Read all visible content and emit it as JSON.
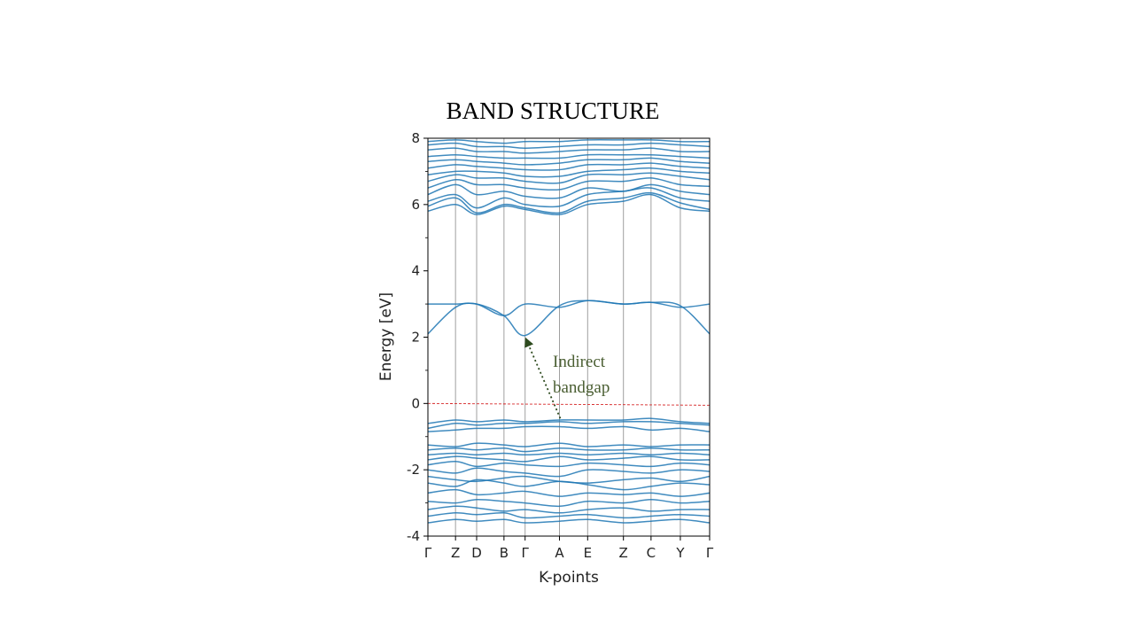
{
  "chart_data": {
    "type": "line",
    "title": "BAND STRUCTURE",
    "xlabel": "K-points",
    "ylabel": "Energy [eV]",
    "ylim": [
      -4,
      8
    ],
    "yticks": [
      -4,
      -2,
      0,
      2,
      4,
      6,
      8
    ],
    "kpoint_labels": [
      "Γ",
      "Z",
      "D",
      "B",
      "Γ",
      "A",
      "E",
      "Z",
      "C",
      "Y",
      "Γ"
    ],
    "kpoint_positions": [
      0,
      0.098,
      0.173,
      0.27,
      0.345,
      0.467,
      0.567,
      0.694,
      0.792,
      0.896,
      1.0
    ],
    "fermi_level": 0,
    "grid": "vertical lines at k-points",
    "colors": {
      "bands": "#1f77b4",
      "fermi": "#d62728",
      "grid": "#a0a0a0",
      "annotation": "#4a5e32",
      "arrow": "#2d4a1e"
    },
    "annotation": {
      "text_line1": "Indirect",
      "text_line2": "bandgap",
      "from": {
        "k": 0.47,
        "energy": -0.45
      },
      "to": {
        "k": 0.345,
        "energy": 2.05
      }
    },
    "series": [
      {
        "values": [
          2.1,
          2.9,
          3.0,
          2.65,
          2.05,
          2.95,
          3.1,
          3.0,
          3.05,
          2.95,
          2.1
        ]
      },
      {
        "values": [
          3.0,
          3.0,
          3.0,
          2.65,
          3.0,
          2.9,
          3.1,
          3.0,
          3.05,
          2.9,
          3.0
        ]
      },
      {
        "values": [
          -0.6,
          -0.5,
          -0.55,
          -0.5,
          -0.55,
          -0.5,
          -0.5,
          -0.5,
          -0.45,
          -0.55,
          -0.6
        ]
      },
      {
        "values": [
          -0.75,
          -0.6,
          -0.65,
          -0.6,
          -0.6,
          -0.55,
          -0.6,
          -0.55,
          -0.55,
          -0.6,
          -0.65
        ]
      },
      {
        "values": [
          -0.85,
          -0.8,
          -0.75,
          -0.75,
          -0.7,
          -0.7,
          -0.75,
          -0.7,
          -0.8,
          -0.75,
          -0.85
        ]
      },
      {
        "values": [
          -1.25,
          -1.3,
          -1.2,
          -1.25,
          -1.3,
          -1.2,
          -1.3,
          -1.25,
          -1.3,
          -1.25,
          -1.25
        ]
      },
      {
        "values": [
          -1.4,
          -1.35,
          -1.4,
          -1.35,
          -1.45,
          -1.35,
          -1.4,
          -1.4,
          -1.35,
          -1.4,
          -1.4
        ]
      },
      {
        "values": [
          -1.55,
          -1.5,
          -1.55,
          -1.5,
          -1.55,
          -1.5,
          -1.55,
          -1.5,
          -1.55,
          -1.5,
          -1.55
        ]
      },
      {
        "values": [
          -1.7,
          -1.6,
          -1.65,
          -1.7,
          -1.75,
          -1.6,
          -1.7,
          -1.65,
          -1.6,
          -1.7,
          -1.7
        ]
      },
      {
        "values": [
          -1.85,
          -1.75,
          -1.9,
          -1.8,
          -1.85,
          -1.9,
          -1.8,
          -1.85,
          -1.9,
          -1.8,
          -1.85
        ]
      },
      {
        "values": [
          -2.0,
          -2.1,
          -1.95,
          -2.05,
          -2.1,
          -2.2,
          -2.0,
          -2.05,
          -2.1,
          -2.0,
          -2.05
        ]
      },
      {
        "values": [
          -2.2,
          -2.3,
          -2.35,
          -2.25,
          -2.2,
          -2.35,
          -2.4,
          -2.3,
          -2.25,
          -2.35,
          -2.2
        ]
      },
      {
        "values": [
          -2.4,
          -2.5,
          -2.3,
          -2.4,
          -2.5,
          -2.35,
          -2.45,
          -2.6,
          -2.5,
          -2.4,
          -2.45
        ]
      },
      {
        "values": [
          -2.7,
          -2.6,
          -2.75,
          -2.7,
          -2.65,
          -2.8,
          -2.7,
          -2.75,
          -2.7,
          -2.8,
          -2.7
        ]
      },
      {
        "values": [
          -2.95,
          -3.0,
          -2.9,
          -2.95,
          -3.0,
          -3.1,
          -2.95,
          -3.0,
          -2.9,
          -3.0,
          -2.95
        ]
      },
      {
        "values": [
          -3.2,
          -3.1,
          -3.15,
          -3.25,
          -3.2,
          -3.3,
          -3.2,
          -3.15,
          -3.25,
          -3.2,
          -3.2
        ]
      },
      {
        "values": [
          -3.4,
          -3.3,
          -3.35,
          -3.3,
          -3.45,
          -3.4,
          -3.35,
          -3.45,
          -3.4,
          -3.35,
          -3.4
        ]
      },
      {
        "values": [
          -3.6,
          -3.5,
          -3.55,
          -3.5,
          -3.6,
          -3.55,
          -3.5,
          -3.6,
          -3.55,
          -3.5,
          -3.6
        ]
      },
      {
        "values": [
          5.8,
          6.0,
          5.7,
          5.95,
          5.85,
          5.7,
          6.0,
          6.1,
          6.3,
          5.9,
          5.8
        ]
      },
      {
        "values": [
          5.95,
          6.2,
          5.75,
          6.0,
          5.9,
          5.75,
          6.1,
          6.2,
          6.35,
          6.05,
          5.85
        ]
      },
      {
        "values": [
          6.1,
          6.3,
          5.9,
          6.2,
          6.0,
          5.95,
          6.3,
          6.4,
          6.5,
          6.2,
          6.1
        ]
      },
      {
        "values": [
          6.3,
          6.6,
          6.3,
          6.4,
          6.25,
          6.2,
          6.5,
          6.4,
          6.6,
          6.4,
          6.3
        ]
      },
      {
        "values": [
          6.5,
          6.75,
          6.6,
          6.6,
          6.5,
          6.45,
          6.7,
          6.7,
          6.8,
          6.6,
          6.55
        ]
      },
      {
        "values": [
          6.7,
          6.9,
          6.8,
          6.8,
          6.7,
          6.65,
          6.9,
          6.9,
          6.95,
          6.85,
          6.75
        ]
      },
      {
        "values": [
          6.9,
          7.0,
          7.0,
          6.95,
          6.85,
          6.85,
          7.0,
          7.05,
          7.1,
          7.0,
          6.95
        ]
      },
      {
        "values": [
          7.1,
          7.2,
          7.15,
          7.1,
          7.05,
          7.05,
          7.2,
          7.2,
          7.25,
          7.15,
          7.1
        ]
      },
      {
        "values": [
          7.3,
          7.35,
          7.3,
          7.25,
          7.2,
          7.25,
          7.35,
          7.35,
          7.4,
          7.3,
          7.25
        ]
      },
      {
        "values": [
          7.45,
          7.5,
          7.45,
          7.4,
          7.4,
          7.4,
          7.5,
          7.5,
          7.5,
          7.45,
          7.4
        ]
      },
      {
        "values": [
          7.65,
          7.7,
          7.6,
          7.6,
          7.55,
          7.6,
          7.65,
          7.65,
          7.7,
          7.6,
          7.6
        ]
      },
      {
        "values": [
          7.8,
          7.85,
          7.75,
          7.75,
          7.7,
          7.75,
          7.8,
          7.8,
          7.85,
          7.8,
          7.75
        ]
      },
      {
        "values": [
          7.9,
          7.95,
          7.9,
          7.85,
          7.9,
          7.9,
          7.95,
          7.95,
          7.95,
          7.9,
          7.9
        ]
      }
    ]
  }
}
